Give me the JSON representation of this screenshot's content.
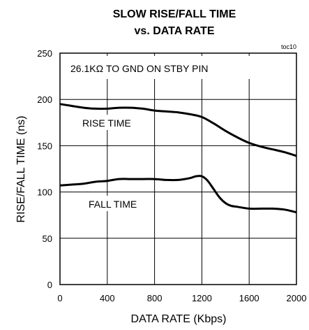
{
  "chart_data": {
    "type": "line",
    "title_line1": "SLOW RISE/FALL TIME",
    "title_line2": "vs. DATA RATE",
    "xlabel": "DATA RATE (Kbps)",
    "ylabel": "RISE/FALL TIME (ns)",
    "xlim": [
      0,
      2000
    ],
    "ylim": [
      0,
      250
    ],
    "xticks": [
      0,
      400,
      800,
      1200,
      1600,
      2000
    ],
    "yticks": [
      0,
      50,
      100,
      150,
      200,
      250
    ],
    "grid": true,
    "tag": "toc10",
    "annotation": "26.1KΩ TO GND ON STBY PIN",
    "series": [
      {
        "name": "RISE TIME",
        "x": [
          0,
          100,
          200,
          300,
          400,
          500,
          600,
          700,
          800,
          900,
          1000,
          1100,
          1200,
          1300,
          1400,
          1500,
          1600,
          1700,
          1800,
          1900,
          2000
        ],
        "y": [
          195,
          193,
          191,
          190,
          190,
          191,
          191,
          190,
          188,
          187,
          186,
          184,
          181,
          174,
          166,
          159,
          153,
          149,
          146,
          143,
          139
        ]
      },
      {
        "name": "FALL TIME",
        "x": [
          0,
          100,
          200,
          300,
          400,
          500,
          600,
          700,
          800,
          900,
          1000,
          1100,
          1150,
          1200,
          1250,
          1300,
          1350,
          1400,
          1450,
          1500,
          1600,
          1700,
          1800,
          1900,
          2000
        ],
        "y": [
          107,
          108,
          109,
          111,
          112,
          114,
          114,
          114,
          114,
          113,
          113,
          115,
          117,
          117,
          112,
          103,
          94,
          88,
          85,
          84,
          82,
          82,
          82,
          81,
          78
        ]
      }
    ]
  }
}
